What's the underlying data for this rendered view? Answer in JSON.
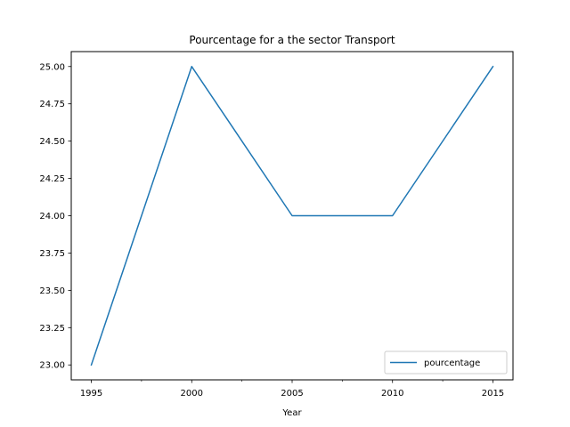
{
  "chart_data": {
    "type": "line",
    "title": "Pourcentage for a the sector Transport",
    "xlabel": "Year",
    "ylabel": "",
    "x": [
      1995,
      2000,
      2005,
      2010,
      2015
    ],
    "series": [
      {
        "name": "pourcentage",
        "values": [
          23.0,
          25.0,
          24.0,
          24.0,
          25.0
        ],
        "color": "#1f77b4"
      }
    ],
    "xlim": [
      1994.0,
      2016.0
    ],
    "ylim": [
      22.9,
      25.1
    ],
    "x_major_ticks": [
      1995,
      2000,
      2005,
      2010,
      2015
    ],
    "x_major_tick_labels": [
      "1995",
      "2000",
      "2005",
      "2010",
      "2015"
    ],
    "x_minor_ticks": [
      1997.5,
      2002.5,
      2007.5,
      2012.5
    ],
    "y_ticks": [
      23.0,
      23.25,
      23.5,
      23.75,
      24.0,
      24.25,
      24.5,
      24.75,
      25.0
    ],
    "y_tick_labels": [
      "23.00",
      "23.25",
      "23.50",
      "23.75",
      "24.00",
      "24.25",
      "24.50",
      "24.75",
      "25.00"
    ],
    "grid": false,
    "legend_position": "lower-right"
  }
}
